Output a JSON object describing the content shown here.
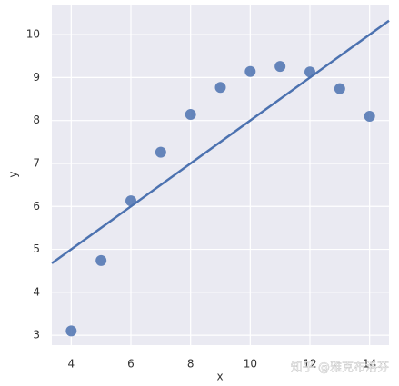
{
  "chart_data": {
    "type": "scatter",
    "x_label": "x",
    "y_label": "y",
    "x": [
      10,
      8,
      13,
      9,
      11,
      14,
      6,
      4,
      12,
      7,
      5
    ],
    "series": [
      {
        "color": "#4c72b0",
        "values": [
          9.14,
          8.14,
          8.74,
          8.77,
          9.26,
          8.1,
          6.13,
          3.1,
          9.13,
          7.26,
          4.74
        ]
      }
    ],
    "fit": {
      "intercept": 3,
      "slope": 0.5,
      "color": "#4c72b0"
    },
    "xlim": [
      3.35,
      14.65
    ],
    "ylim": [
      2.77,
      10.7
    ],
    "xticks": [
      4,
      6,
      8,
      10,
      12,
      14
    ],
    "yticks": [
      3,
      4,
      5,
      6,
      7,
      8,
      9,
      10
    ],
    "grid": true,
    "watermark": "知乎 @雅克布洛芬"
  }
}
